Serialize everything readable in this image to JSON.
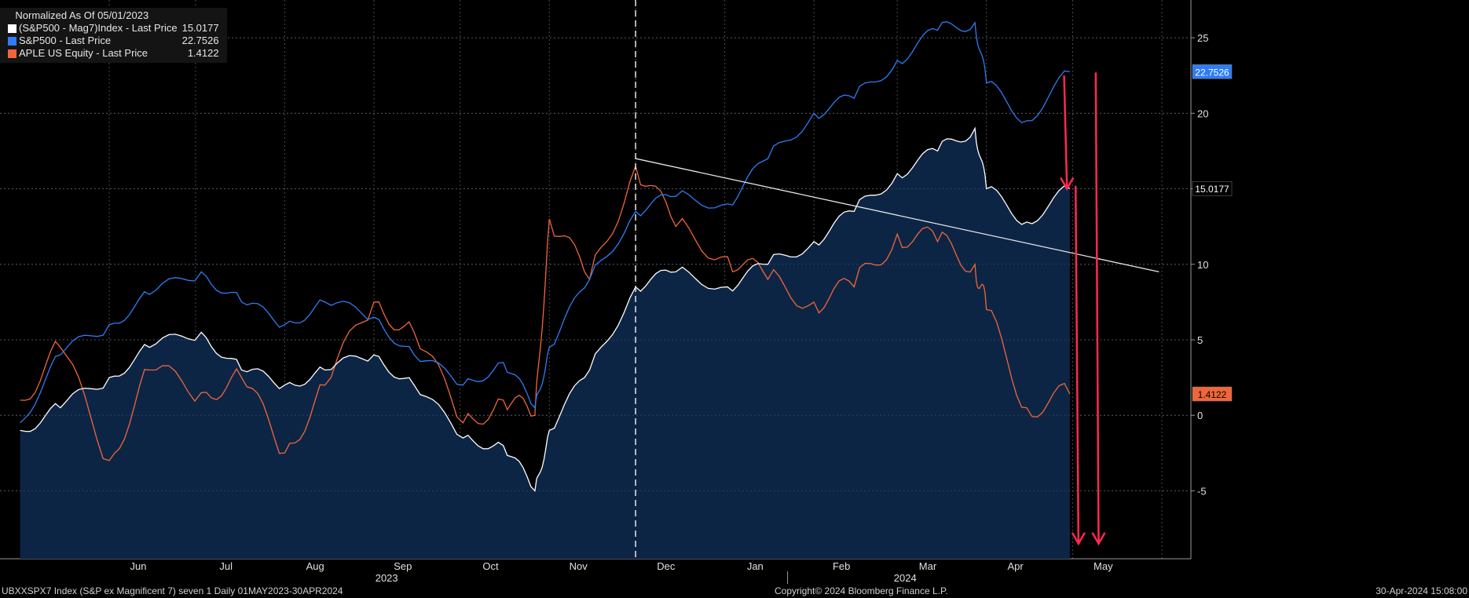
{
  "chart_data": {
    "type": "line",
    "legend": {
      "title": "Normalized As Of 05/01/2023",
      "placement": "top-left",
      "entries": [
        {
          "name": "(S&P500 - Mag7)Index - Last Price",
          "value": "15.0177",
          "color": "#ffffff"
        },
        {
          "name": "S&P500 - Last Price",
          "value": "22.7526",
          "color": "#2f7cf6"
        },
        {
          "name": "APLE US Equity - Last Price",
          "value": "1.4122",
          "color": "#f0663a"
        }
      ]
    },
    "ylim": [
      -9.5,
      27.5
    ],
    "yticks": [
      "-5",
      "0",
      "5",
      "10",
      "15",
      "20",
      "25"
    ],
    "x_dates": [
      "2023-05-01",
      "2023-05-15",
      "2023-06-01",
      "2023-06-15",
      "2023-07-03",
      "2023-07-17",
      "2023-08-01",
      "2023-08-15",
      "2023-09-01",
      "2023-09-15",
      "2023-10-02",
      "2023-10-16",
      "2023-10-27",
      "2023-11-01",
      "2023-11-15",
      "2023-12-01",
      "2023-12-15",
      "2024-01-02",
      "2024-01-16",
      "2024-02-01",
      "2024-02-15",
      "2024-03-01",
      "2024-03-15",
      "2024-03-28",
      "2024-04-01",
      "2024-04-15",
      "2024-04-30"
    ],
    "series": [
      {
        "name": "(S&P500 - Mag7)Index - Last Price",
        "color": "#ffffff",
        "fill": "#0d2545",
        "values": [
          -1.0,
          0.5,
          2.5,
          4.5,
          5.5,
          3.0,
          2.0,
          3.0,
          4.0,
          2.0,
          -1.5,
          -2.0,
          -5.0,
          -1.0,
          3.0,
          8.5,
          9.5,
          8.5,
          10.0,
          11.5,
          13.5,
          16.0,
          17.5,
          19.0,
          15.0,
          12.8,
          15.0177
        ]
      },
      {
        "name": "S&P500 - Last Price",
        "color": "#2f7cf6",
        "values": [
          -0.5,
          4.0,
          6.0,
          8.0,
          9.5,
          7.5,
          6.0,
          7.5,
          6.5,
          4.0,
          2.0,
          3.5,
          0.5,
          4.5,
          9.0,
          13.5,
          14.5,
          14.0,
          17.0,
          20.0,
          21.0,
          23.5,
          25.5,
          26.0,
          22.0,
          19.5,
          22.7526
        ]
      },
      {
        "name": "APLE US Equity - Last Price",
        "color": "#f0663a",
        "values": [
          1.0,
          4.5,
          -3.0,
          3.0,
          1.5,
          2.5,
          -2.5,
          2.0,
          7.5,
          5.5,
          -0.5,
          1.0,
          0.0,
          13.0,
          9.0,
          16.5,
          12.5,
          10.5,
          9.0,
          7.5,
          8.5,
          12.0,
          11.5,
          10.0,
          7.0,
          0.5,
          1.4122
        ]
      }
    ],
    "trendline": {
      "from": [
        "2023-12-01",
        17.0
      ],
      "to": [
        "2024-05-31",
        9.5
      ],
      "color": "#e6e6e6"
    },
    "vertical_marker": {
      "date": "2023-12-01",
      "style": "dashed"
    },
    "annotations_arrows": {
      "color": "#ff2a50",
      "count": 3
    },
    "x_month_labels": [
      "Jun",
      "Jul",
      "Aug",
      "Sep",
      "Oct",
      "Nov",
      "Dec",
      "Jan",
      "Feb",
      "Mar",
      "Apr",
      "May"
    ],
    "x_year_labels": [
      "2023",
      "2024"
    ],
    "grid": true,
    "last_value_tags": [
      {
        "text": "22.7526",
        "color": "#2f7cf6",
        "text_color": "#ffffff"
      },
      {
        "text": "15.0177",
        "color": "#000000",
        "text_color": "#ffffff"
      },
      {
        "text": "1.4122",
        "color": "#f0663a",
        "text_color": "#000000"
      }
    ]
  },
  "footer": {
    "left": "UBXXSPX7 Index (S&P ex Magnificent 7) seven 1  Daily 01MAY2023-30APR2024",
    "center": "Copyright© 2024 Bloomberg Finance L.P.",
    "right": "30-Apr-2024 15:08:00"
  }
}
